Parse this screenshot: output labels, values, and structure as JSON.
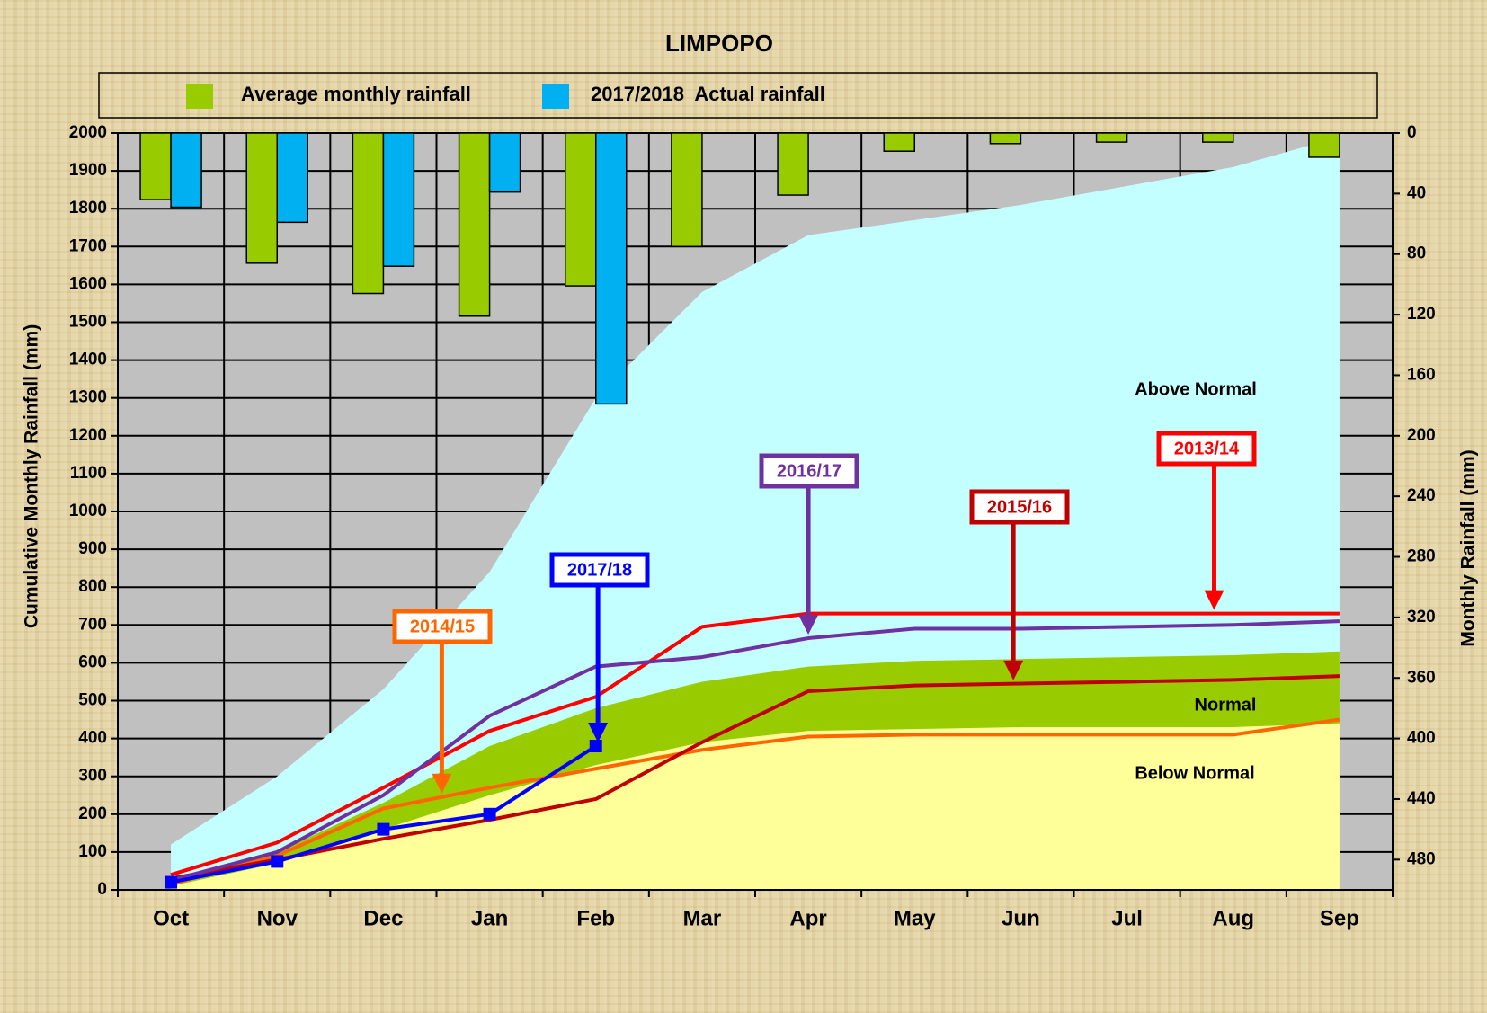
{
  "chart_data": {
    "type": "combo",
    "title": "LIMPOPO",
    "ylabel": "Cumulative Monthly Rainfall (mm)",
    "y2label": "Monthly Rainfall (mm)",
    "categories": [
      "Oct",
      "Nov",
      "Dec",
      "Jan",
      "Feb",
      "Mar",
      "Apr",
      "May",
      "Jun",
      "Jul",
      "Aug",
      "Sep"
    ],
    "ylim": [
      0,
      2000
    ],
    "yticks": [
      0,
      100,
      200,
      300,
      400,
      500,
      600,
      700,
      800,
      900,
      1000,
      1100,
      1200,
      1300,
      1400,
      1500,
      1600,
      1700,
      1800,
      1900,
      2000
    ],
    "y2lim": [
      0,
      500
    ],
    "y2_inverted": true,
    "y2ticks": [
      0,
      40,
      80,
      120,
      160,
      200,
      240,
      280,
      320,
      360,
      400,
      440,
      480
    ],
    "grid": true,
    "series": [
      {
        "name": "Above Normal",
        "type": "area",
        "color": "#c4ffff",
        "values": [
          120,
          300,
          530,
          840,
          1300,
          1580,
          1730,
          1770,
          1810,
          1860,
          1910,
          1990
        ]
      },
      {
        "name": "Normal",
        "type": "area",
        "color": "#99cc00",
        "values": [
          30,
          100,
          230,
          380,
          480,
          550,
          590,
          605,
          610,
          615,
          620,
          630
        ]
      },
      {
        "name": "Below Normal",
        "type": "area",
        "color": "#ffff99",
        "values": [
          10,
          70,
          160,
          250,
          330,
          390,
          420,
          425,
          430,
          430,
          430,
          440
        ]
      },
      {
        "name": "Average monthly rainfall",
        "type": "bar",
        "axis": "y2",
        "color": "#99cc00",
        "values": [
          44,
          86,
          106,
          121,
          101,
          75,
          41,
          12,
          7,
          6,
          6,
          16
        ]
      },
      {
        "name": "2017/2018  Actual rainfall",
        "type": "bar",
        "axis": "y2",
        "color": "#00b0f0",
        "values": [
          49,
          59,
          88,
          39,
          179,
          null,
          null,
          null,
          null,
          null,
          null,
          null
        ]
      },
      {
        "name": "2013/14",
        "type": "line",
        "color": "#ff0000",
        "values": [
          40,
          125,
          270,
          420,
          510,
          695,
          730,
          730,
          730,
          730,
          730,
          730
        ]
      },
      {
        "name": "2014/15",
        "type": "line",
        "color": "#ff6600",
        "values": [
          15,
          90,
          215,
          270,
          320,
          370,
          405,
          410,
          410,
          410,
          410,
          450
        ]
      },
      {
        "name": "2015/16",
        "type": "line",
        "color": "#c00000",
        "values": [
          30,
          80,
          135,
          185,
          240,
          390,
          525,
          540,
          545,
          550,
          555,
          565
        ]
      },
      {
        "name": "2016/17",
        "type": "line",
        "color": "#7030a0",
        "values": [
          25,
          100,
          250,
          460,
          590,
          615,
          665,
          690,
          690,
          695,
          700,
          710
        ]
      },
      {
        "name": "2017/18",
        "type": "line",
        "color": "#0000ff",
        "markers": true,
        "values": [
          20,
          75,
          160,
          200,
          380,
          null,
          null,
          null,
          null,
          null,
          null,
          null
        ]
      }
    ]
  }
}
